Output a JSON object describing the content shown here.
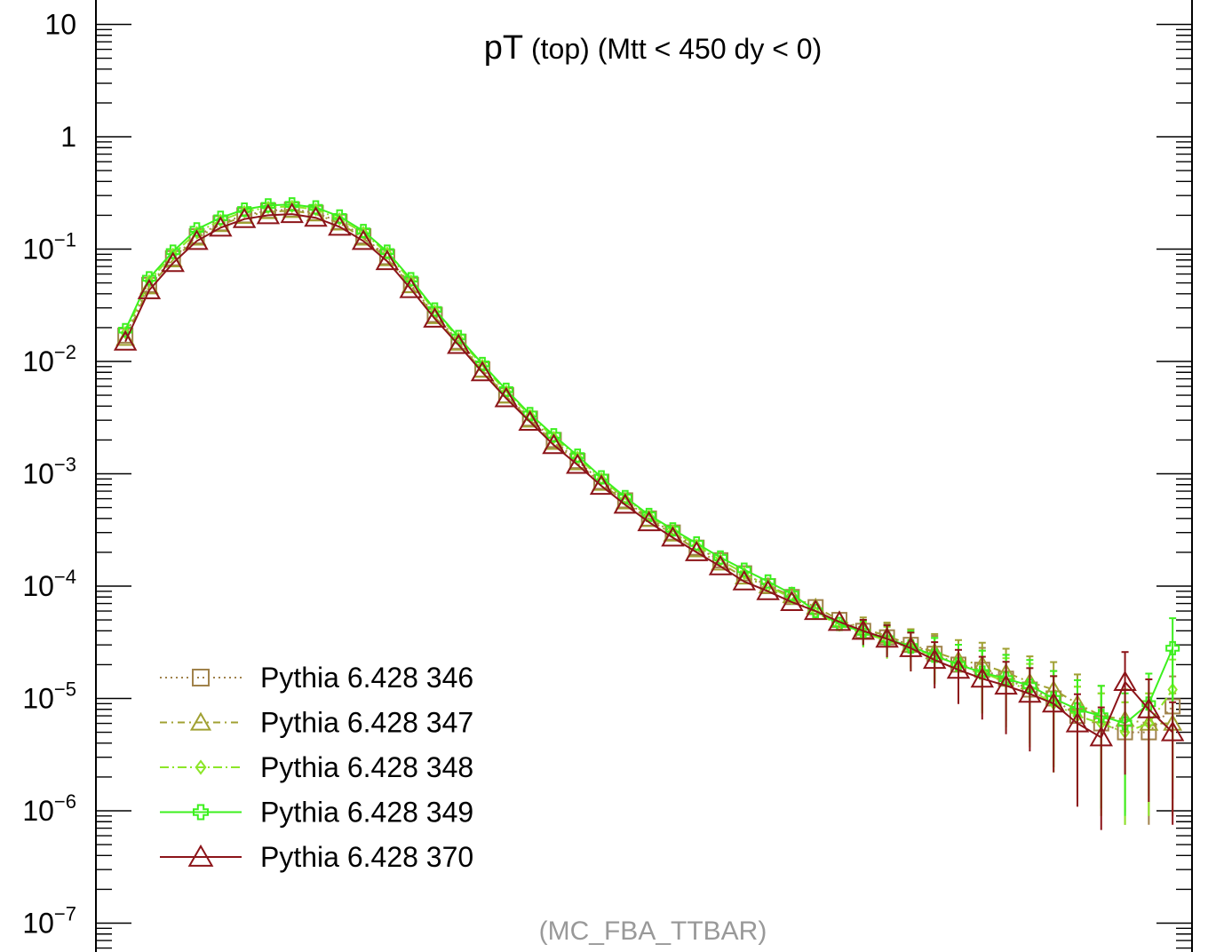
{
  "chart_data": {
    "type": "line",
    "title_main": "pT",
    "title_rest": " (top) (Mtt < 450 dy < 0)",
    "watermark": "(MC_FBA_TTBAR)",
    "ylog": true,
    "ylim": [
      1e-07,
      20
    ],
    "xlim": [
      0,
      100
    ],
    "y_ticks": [
      {
        "base": "10",
        "exp": "",
        "value": 10
      },
      {
        "base": "1",
        "exp": "",
        "value": 1
      },
      {
        "base": "10",
        "exp": "−1",
        "value": 0.1
      },
      {
        "base": "10",
        "exp": "−2",
        "value": 0.01
      },
      {
        "base": "10",
        "exp": "−3",
        "value": 0.001
      },
      {
        "base": "10",
        "exp": "−4",
        "value": 0.0001
      },
      {
        "base": "10",
        "exp": "−5",
        "value": 1e-05
      },
      {
        "base": "10",
        "exp": "−6",
        "value": 1e-06
      },
      {
        "base": "10",
        "exp": "−7",
        "value": 1e-07
      }
    ],
    "legend_position": "bottom-left",
    "x": [
      1.9,
      4.1,
      6.3,
      8.5,
      10.7,
      12.9,
      15.1,
      17.3,
      19.5,
      21.7,
      23.9,
      26.1,
      28.3,
      30.5,
      32.7,
      34.9,
      37.1,
      39.3,
      41.5,
      43.7,
      45.9,
      48.1,
      50.3,
      52.5,
      54.7,
      56.9,
      59.1,
      61.3,
      63.5,
      65.7,
      67.9,
      70.1,
      72.3,
      74.5,
      76.7,
      78.9,
      81.1,
      83.3,
      85.5,
      87.7,
      89.9,
      92.1,
      94.3,
      96.5,
      98.7
    ],
    "series": [
      {
        "name": "Pythia 6.428 346",
        "color": "#a0824b",
        "marker": "square",
        "dash": "2,4",
        "values": [
          0.017,
          0.048,
          0.083,
          0.13,
          0.17,
          0.2,
          0.22,
          0.225,
          0.21,
          0.175,
          0.13,
          0.085,
          0.048,
          0.026,
          0.015,
          0.0085,
          0.005,
          0.0031,
          0.002,
          0.0013,
          0.00085,
          0.00058,
          0.0004,
          0.0003,
          0.00022,
          0.00017,
          0.00013,
          0.0001,
          8e-05,
          6.5e-05,
          5e-05,
          4e-05,
          3.5e-05,
          3e-05,
          2.5e-05,
          2e-05,
          1.8e-05,
          1.5e-05,
          1.2e-05,
          1e-05,
          7e-06,
          6e-06,
          5e-06,
          5e-06,
          8.5e-06
        ]
      },
      {
        "name": "Pythia 6.428 347",
        "color": "#a0a032",
        "marker": "triangle",
        "dash": "8,5,2,5",
        "values": [
          0.016,
          0.046,
          0.08,
          0.125,
          0.165,
          0.195,
          0.215,
          0.22,
          0.205,
          0.17,
          0.125,
          0.082,
          0.047,
          0.025,
          0.0145,
          0.0083,
          0.0049,
          0.003,
          0.0019,
          0.00125,
          0.00082,
          0.00056,
          0.00039,
          0.00029,
          0.00021,
          0.00016,
          0.00012,
          0.0001,
          8.2e-05,
          6.5e-05,
          5e-05,
          4.2e-05,
          3.6e-05,
          3e-05,
          2.6e-05,
          2.2e-05,
          2e-05,
          1.7e-05,
          1.4e-05,
          1.2e-05,
          9e-06,
          7e-06,
          6.5e-06,
          6e-06,
          6e-06
        ]
      },
      {
        "name": "Pythia 6.428 348",
        "color": "#8ce628",
        "marker": "diamond",
        "dash": "10,4,2,4",
        "values": [
          0.018,
          0.052,
          0.09,
          0.14,
          0.18,
          0.215,
          0.235,
          0.24,
          0.225,
          0.185,
          0.14,
          0.092,
          0.052,
          0.028,
          0.016,
          0.0092,
          0.0054,
          0.0033,
          0.0021,
          0.0014,
          0.0009,
          0.0006,
          0.00042,
          0.00031,
          0.00023,
          0.00017,
          0.00013,
          0.0001,
          7.8e-05,
          5.8e-05,
          4.5e-05,
          3.8e-05,
          3.3e-05,
          2.8e-05,
          2.4e-05,
          2e-05,
          1.7e-05,
          1.4e-05,
          1.2e-05,
          9e-06,
          7e-06,
          6e-06,
          5e-06,
          6e-06,
          1.2e-05
        ]
      },
      {
        "name": "Pythia 6.428 349",
        "color": "#3cf01e",
        "marker": "cross",
        "dash": "",
        "values": [
          0.019,
          0.055,
          0.095,
          0.15,
          0.19,
          0.225,
          0.245,
          0.25,
          0.235,
          0.195,
          0.145,
          0.095,
          0.054,
          0.029,
          0.0165,
          0.0095,
          0.0056,
          0.0034,
          0.0022,
          0.00145,
          0.00093,
          0.00062,
          0.00043,
          0.00032,
          0.00024,
          0.00018,
          0.00014,
          0.00011,
          8.5e-05,
          6e-05,
          4.6e-05,
          3.9e-05,
          3.4e-05,
          2.9e-05,
          2.4e-05,
          2e-05,
          1.7e-05,
          1.5e-05,
          1.3e-05,
          1e-05,
          8e-06,
          7e-06,
          6e-06,
          9e-06,
          2.8e-05
        ]
      },
      {
        "name": "Pythia 6.428 370",
        "color": "#8c1419",
        "marker": "triangle",
        "dash": "",
        "values": [
          0.015,
          0.043,
          0.075,
          0.118,
          0.155,
          0.185,
          0.2,
          0.205,
          0.19,
          0.158,
          0.118,
          0.078,
          0.044,
          0.024,
          0.014,
          0.008,
          0.0047,
          0.0029,
          0.0018,
          0.0012,
          0.00078,
          0.00053,
          0.00037,
          0.00027,
          0.0002,
          0.00015,
          0.00011,
          9e-05,
          7.2e-05,
          6e-05,
          4.8e-05,
          4e-05,
          3.4e-05,
          2.8e-05,
          2.2e-05,
          1.8e-05,
          1.5e-05,
          1.3e-05,
          1.1e-05,
          9e-06,
          6e-06,
          4.5e-06,
          1.4e-05,
          8e-06,
          5e-06
        ]
      }
    ]
  }
}
